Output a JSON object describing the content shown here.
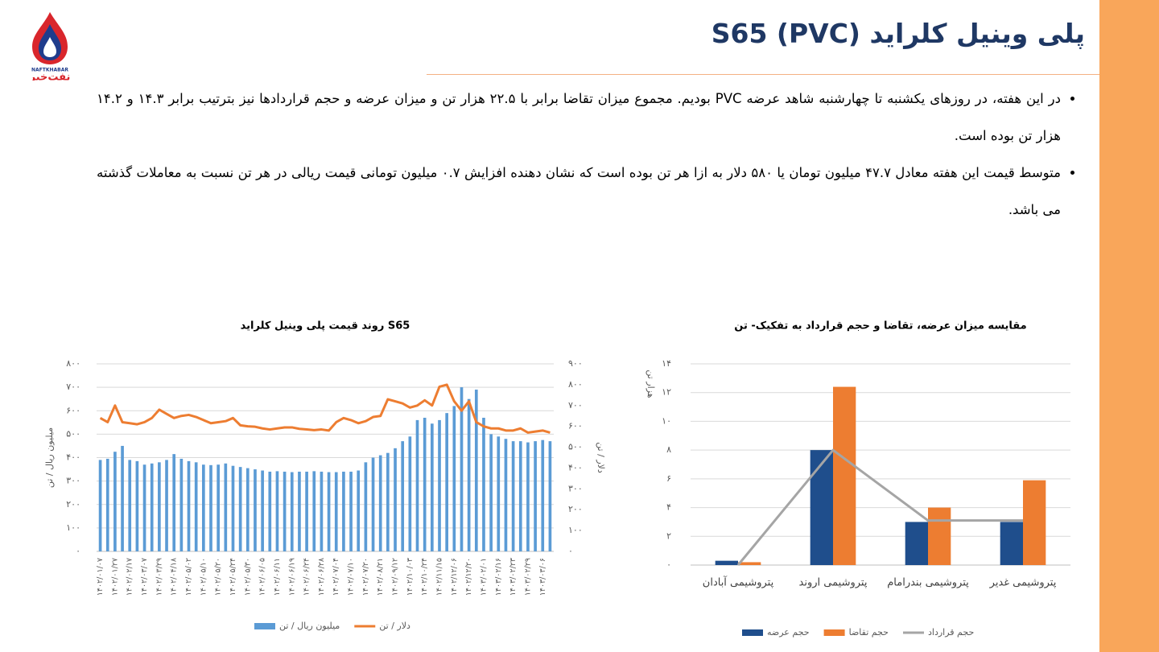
{
  "header": {
    "title": "پلی وینیل کلراید S65 (PVC)",
    "logo_latin": "NAFTKHABAR",
    "logo_text": "نفت‌خبر"
  },
  "bullets": [
    "در این هفته، در روزهای یکشنبه تا چهارشنبه شاهد عرضه PVC بودیم. مجموع میزان تقاضا برابر با ۲۲.۵ هزار تن و میزان عرضه و حجم قراردادها نیز بترتیب برابر ۱۴.۳ و ۱۴.۲ هزار تن بوده است.",
    "متوسط قیمت این هفته معادل ۴۷.۷ میلیون تومان یا ۵۸۰ دلار به ازا هر تن بوده است که نشان دهنده افزایش ۰.۷ میلیون تومانی قیمت ریالی در هر تن نسبت به معاملات گذشته می باشد."
  ],
  "chart_data": [
    {
      "type": "bar",
      "title": "روند قیمت پلی وینیل کلراید S65",
      "categories": [
        "۱۴۰۲/۰۱/۰۷",
        null,
        "۱۴۰۲/۰۱/۲۷",
        null,
        "۱۴۰۲/۰۲/۱۷",
        null,
        "۱۴۰۲/۰۳/۰۷",
        null,
        "۱۴۰۲/۰۳/۲۹",
        null,
        "۱۴۰۲/۰۴/۱۸",
        null,
        "۱۴۰۲/۰۵/۰۲",
        null,
        "۱۴۰۲/۰۵/۱۰",
        null,
        "۱۴۰۲/۰۵/۲۰",
        null,
        "۱۴۰۲/۰۵/۲۴",
        null,
        "۱۴۰۲/۰۵/۳۰",
        null,
        "۱۴۰۲/۰۶/۰۵",
        null,
        "۱۴۰۲/۰۶/۱۱",
        null,
        "۱۴۰۲/۰۶/۱۹",
        null,
        "۱۴۰۲/۰۶/۲۴",
        null,
        "۱۴۰۲/۰۶/۲۸",
        null,
        "۱۴۰۲/۰۷/۰۴",
        null,
        "۱۴۰۲/۰۷/۱۰",
        null,
        "۱۴۰۲/۰۷/۲۰",
        null,
        "۱۴۰۲/۰۸/۲۱",
        null,
        "۱۴۰۲/۰۹/۱۲",
        null,
        "۱۴۰۲/۱۰/۰۳",
        null,
        "۱۴۰۲/۱۰/۲۴",
        null,
        "۱۴۰۲/۱۱/۱۵",
        null,
        "۱۴۰۲/۱۲/۰۶",
        null,
        "۱۴۰۲/۱۲/۲۰",
        null,
        "۱۴۰۳/۰۲/۰۱",
        null,
        "۱۴۰۳/۰۲/۱۶",
        null,
        "۱۴۰۳/۰۲/۲۳",
        null,
        "۱۴۰۳/۰۲/۲۹",
        null,
        "۱۴۰۳/۰۳/۰۶",
        null
      ],
      "series": [
        {
          "name": "میلیون ریال / تن",
          "type": "bar",
          "color": "#5b9bd5",
          "values": [
            390,
            395,
            425,
            450,
            390,
            385,
            370,
            375,
            380,
            390,
            415,
            395,
            385,
            380,
            370,
            368,
            370,
            375,
            365,
            360,
            355,
            350,
            345,
            340,
            342,
            340,
            338,
            340,
            340,
            342,
            340,
            338,
            338,
            340,
            340,
            345,
            380,
            400,
            410,
            420,
            440,
            470,
            490,
            560,
            570,
            545,
            560,
            590,
            620,
            700,
            650,
            690,
            570,
            500,
            490,
            480,
            470,
            470,
            465,
            470,
            475,
            470
          ]
        },
        {
          "name": "دلار / تن",
          "type": "line",
          "color": "#ed7d31",
          "axis": "y2",
          "values": [
            640,
            620,
            700,
            620,
            615,
            610,
            620,
            640,
            680,
            660,
            640,
            650,
            655,
            645,
            630,
            615,
            620,
            625,
            640,
            605,
            600,
            598,
            590,
            585,
            590,
            595,
            595,
            588,
            585,
            582,
            585,
            580,
            620,
            640,
            630,
            615,
            625,
            645,
            650,
            730,
            720,
            710,
            690,
            700,
            725,
            700,
            790,
            800,
            720,
            675,
            720,
            620,
            600,
            590,
            590,
            580,
            580,
            590,
            570,
            575,
            580,
            570
          ]
        }
      ],
      "ylabel": "میلیون ریال / تن",
      "y2label": "دلار / تن",
      "ylim": [
        0,
        800
      ],
      "yticks": [
        {
          "value": 0,
          "label": "۰"
        },
        {
          "value": 100,
          "label": "۱۰۰"
        },
        {
          "value": 200,
          "label": "۲۰۰"
        },
        {
          "value": 300,
          "label": "۳۰۰"
        },
        {
          "value": 400,
          "label": "۴۰۰"
        },
        {
          "value": 500,
          "label": "۵۰۰"
        },
        {
          "value": 600,
          "label": "۶۰۰"
        },
        {
          "value": 700,
          "label": "۷۰۰"
        },
        {
          "value": 800,
          "label": "۸۰۰"
        }
      ],
      "y2lim": [
        0,
        900
      ],
      "y2ticks": [
        {
          "value": 0,
          "label": "۰"
        },
        {
          "value": 100,
          "label": "۱۰۰"
        },
        {
          "value": 200,
          "label": "۲۰۰"
        },
        {
          "value": 300,
          "label": "۳۰۰"
        },
        {
          "value": 400,
          "label": "۴۰۰"
        },
        {
          "value": 500,
          "label": "۵۰۰"
        },
        {
          "value": 600,
          "label": "۶۰۰"
        },
        {
          "value": 700,
          "label": "۷۰۰"
        },
        {
          "value": 800,
          "label": "۸۰۰"
        },
        {
          "value": 900,
          "label": "۹۰۰"
        }
      ],
      "grid": true,
      "legend": "bottom"
    },
    {
      "type": "bar",
      "title": "مقایسه میزان عرضه، تقاضا و حجم قرارداد به تفکیک- تن",
      "categories": [
        "پتروشیمی آبادان",
        "پتروشیمی اروند",
        "پتروشیمی بندرامام",
        "پتروشیمی غدیر"
      ],
      "series": [
        {
          "name": "حجم عرضه",
          "type": "bar",
          "color": "#1f4e8c",
          "values": [
            0.3,
            8,
            3,
            3
          ]
        },
        {
          "name": "حجم تقاضا",
          "type": "bar",
          "color": "#ed7d31",
          "values": [
            0.2,
            12.4,
            4,
            5.9
          ]
        },
        {
          "name": "حجم قرارداد",
          "type": "line",
          "color": "#a5a5a5",
          "values": [
            0,
            8,
            3.1,
            3.1
          ]
        }
      ],
      "ylabel": "هزار تن",
      "ylim": [
        0,
        14
      ],
      "yticks": [
        {
          "value": 0,
          "label": "۰"
        },
        {
          "value": 2,
          "label": "۲"
        },
        {
          "value": 4,
          "label": "۴"
        },
        {
          "value": 6,
          "label": "۶"
        },
        {
          "value": 8,
          "label": "۸"
        },
        {
          "value": 10,
          "label": "۱۰"
        },
        {
          "value": 12,
          "label": "۱۲"
        },
        {
          "value": 14,
          "label": "۱۴"
        }
      ],
      "grid": true,
      "legend": "bottom"
    }
  ]
}
